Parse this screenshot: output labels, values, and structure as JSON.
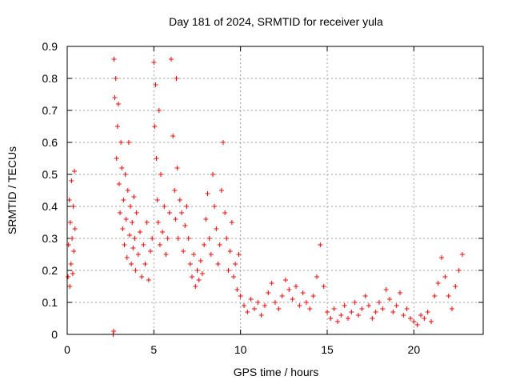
{
  "chart_data": {
    "type": "scatter",
    "title": "Day 181 of 2024, SRMTID for receiver yula",
    "xlabel": "GPS time / hours",
    "ylabel": "SRMTID / TECUs",
    "xlim": [
      0,
      24
    ],
    "ylim": [
      0,
      0.9
    ],
    "xticks": [
      0,
      5,
      10,
      15,
      20
    ],
    "xtick_labels": [
      "0",
      "5",
      "10",
      "15",
      "20"
    ],
    "yticks": [
      0,
      0.1,
      0.2,
      0.3,
      0.4,
      0.5,
      0.6,
      0.7,
      0.8,
      0.9
    ],
    "ytick_labels": [
      "0",
      "0.1",
      "0.2",
      "0.3",
      "0.4",
      "0.5",
      "0.6",
      "0.7",
      "0.8",
      "0.9"
    ],
    "grid": true,
    "marker": "+",
    "color": "#ff0000",
    "series": [
      {
        "name": "SRMTID",
        "x": [
          0.05,
          0.08,
          0.12,
          0.15,
          0.18,
          0.22,
          0.25,
          0.28,
          0.32,
          0.35,
          0.38,
          0.42,
          0.45,
          2.65,
          2.68,
          2.7,
          2.75,
          2.8,
          2.85,
          2.9,
          2.95,
          3.0,
          3.05,
          3.1,
          3.15,
          3.2,
          3.25,
          3.3,
          3.35,
          3.4,
          3.45,
          3.5,
          3.55,
          3.6,
          3.65,
          3.7,
          3.75,
          3.8,
          3.85,
          3.9,
          3.95,
          4.0,
          4.1,
          4.2,
          4.3,
          4.4,
          4.5,
          4.6,
          4.7,
          4.8,
          4.9,
          5.0,
          5.05,
          5.1,
          5.15,
          5.2,
          5.25,
          5.3,
          5.35,
          5.4,
          5.5,
          5.6,
          5.7,
          5.8,
          5.9,
          6.0,
          6.1,
          6.2,
          6.25,
          6.3,
          6.35,
          6.4,
          6.5,
          6.6,
          6.7,
          6.8,
          6.9,
          7.0,
          7.1,
          7.2,
          7.3,
          7.4,
          7.5,
          7.6,
          7.7,
          7.8,
          7.9,
          8.0,
          8.1,
          8.2,
          8.3,
          8.4,
          8.5,
          8.6,
          8.7,
          8.8,
          8.9,
          9.0,
          9.1,
          9.2,
          9.3,
          9.4,
          9.5,
          9.6,
          9.7,
          9.8,
          9.9,
          10.0,
          10.2,
          10.4,
          10.6,
          10.8,
          11.0,
          11.2,
          11.4,
          11.6,
          11.8,
          12.0,
          12.2,
          12.4,
          12.6,
          12.8,
          13.0,
          13.2,
          13.4,
          13.6,
          13.8,
          14.0,
          14.2,
          14.4,
          14.6,
          14.8,
          15.0,
          15.2,
          15.4,
          15.6,
          15.8,
          16.0,
          16.2,
          16.4,
          16.6,
          16.8,
          17.0,
          17.2,
          17.4,
          17.6,
          17.8,
          18.0,
          18.2,
          18.4,
          18.6,
          18.8,
          19.0,
          19.2,
          19.4,
          19.6,
          19.8,
          20.0,
          20.2,
          20.4,
          20.6,
          20.8,
          21.0,
          21.2,
          21.4,
          21.6,
          21.8,
          22.0,
          22.2,
          22.4,
          22.6,
          22.8
        ],
        "y": [
          0.18,
          0.28,
          0.42,
          0.15,
          0.35,
          0.22,
          0.48,
          0.3,
          0.19,
          0.4,
          0.26,
          0.51,
          0.33,
          0.0,
          0.01,
          0.86,
          0.74,
          0.8,
          0.55,
          0.65,
          0.72,
          0.47,
          0.38,
          0.6,
          0.52,
          0.33,
          0.42,
          0.28,
          0.5,
          0.36,
          0.24,
          0.45,
          0.6,
          0.31,
          0.4,
          0.22,
          0.35,
          0.27,
          0.43,
          0.3,
          0.2,
          0.38,
          0.25,
          0.32,
          0.18,
          0.28,
          0.22,
          0.35,
          0.17,
          0.26,
          0.3,
          0.85,
          0.65,
          0.78,
          0.55,
          0.42,
          0.35,
          0.7,
          0.28,
          0.5,
          0.32,
          0.4,
          0.25,
          0.3,
          0.38,
          0.86,
          0.62,
          0.45,
          0.36,
          0.8,
          0.52,
          0.3,
          0.42,
          0.38,
          0.26,
          0.34,
          0.4,
          0.3,
          0.22,
          0.18,
          0.25,
          0.15,
          0.2,
          0.17,
          0.23,
          0.19,
          0.28,
          0.36,
          0.44,
          0.3,
          0.25,
          0.5,
          0.4,
          0.33,
          0.22,
          0.28,
          0.45,
          0.6,
          0.38,
          0.3,
          0.2,
          0.26,
          0.35,
          0.18,
          0.22,
          0.14,
          0.25,
          0.12,
          0.09,
          0.07,
          0.11,
          0.08,
          0.1,
          0.06,
          0.09,
          0.13,
          0.16,
          0.1,
          0.08,
          0.12,
          0.17,
          0.14,
          0.11,
          0.15,
          0.09,
          0.13,
          0.1,
          0.08,
          0.12,
          0.18,
          0.28,
          0.15,
          0.07,
          0.05,
          0.08,
          0.04,
          0.06,
          0.09,
          0.05,
          0.07,
          0.1,
          0.06,
          0.08,
          0.12,
          0.09,
          0.05,
          0.07,
          0.1,
          0.08,
          0.14,
          0.11,
          0.07,
          0.09,
          0.13,
          0.06,
          0.08,
          0.05,
          0.04,
          0.03,
          0.06,
          0.05,
          0.07,
          0.04,
          0.12,
          0.16,
          0.24,
          0.18,
          0.12,
          0.08,
          0.15,
          0.2,
          0.25
        ]
      }
    ]
  }
}
